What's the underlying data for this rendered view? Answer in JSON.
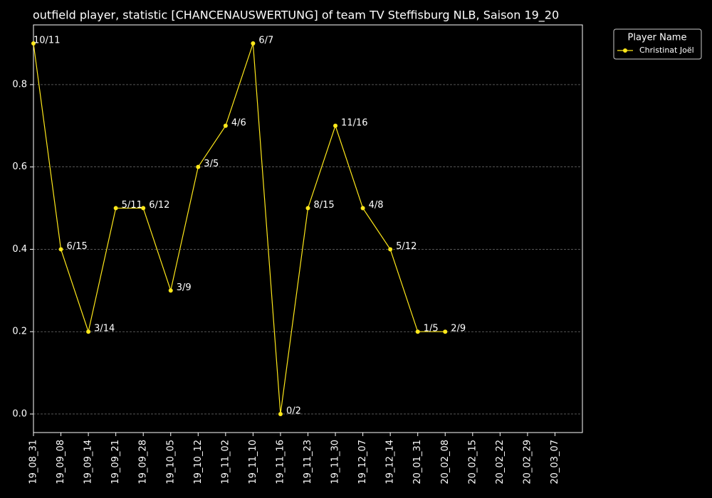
{
  "chart_data": {
    "type": "line",
    "title": "outfield player, statistic [CHANCENAUSWERTUNG] of team TV Steffisburg NLB, Saison 19_20",
    "categories": [
      "19_08_31",
      "19_09_08",
      "19_09_14",
      "19_09_21",
      "19_09_28",
      "19_10_05",
      "19_10_12",
      "19_11_02",
      "19_11_10",
      "19_11_16",
      "19_11_23",
      "19_11_30",
      "19_12_07",
      "19_12_14",
      "20_01_31",
      "20_02_08",
      "20_02_15",
      "20_02_22",
      "20_02_29",
      "20_03_07"
    ],
    "series": [
      {
        "name": "Christinat Joël",
        "color": "#ffe81a",
        "values": [
          0.9,
          0.4,
          0.2,
          0.5,
          0.5,
          0.3,
          0.6,
          0.7,
          0.9,
          0.0,
          0.5,
          0.7,
          0.5,
          0.4,
          0.2,
          0.2,
          null,
          null,
          null,
          null
        ],
        "annotations": [
          "10/11",
          "6/15",
          "3/14",
          "5/11",
          "6/12",
          "3/9",
          "3/5",
          "4/6",
          "6/7",
          "0/2",
          "8/15",
          "11/16",
          "4/8",
          "5/12",
          "1/5",
          "2/9",
          null,
          null,
          null,
          null
        ]
      }
    ],
    "legend_title": "Player Name",
    "legend": "upper right outside",
    "ylim": [
      -0.045,
      0.945
    ],
    "yticks": [
      {
        "value": 0,
        "label": "0.0"
      },
      0.2,
      0.4,
      0.6,
      0.8
    ],
    "grid": true
  }
}
